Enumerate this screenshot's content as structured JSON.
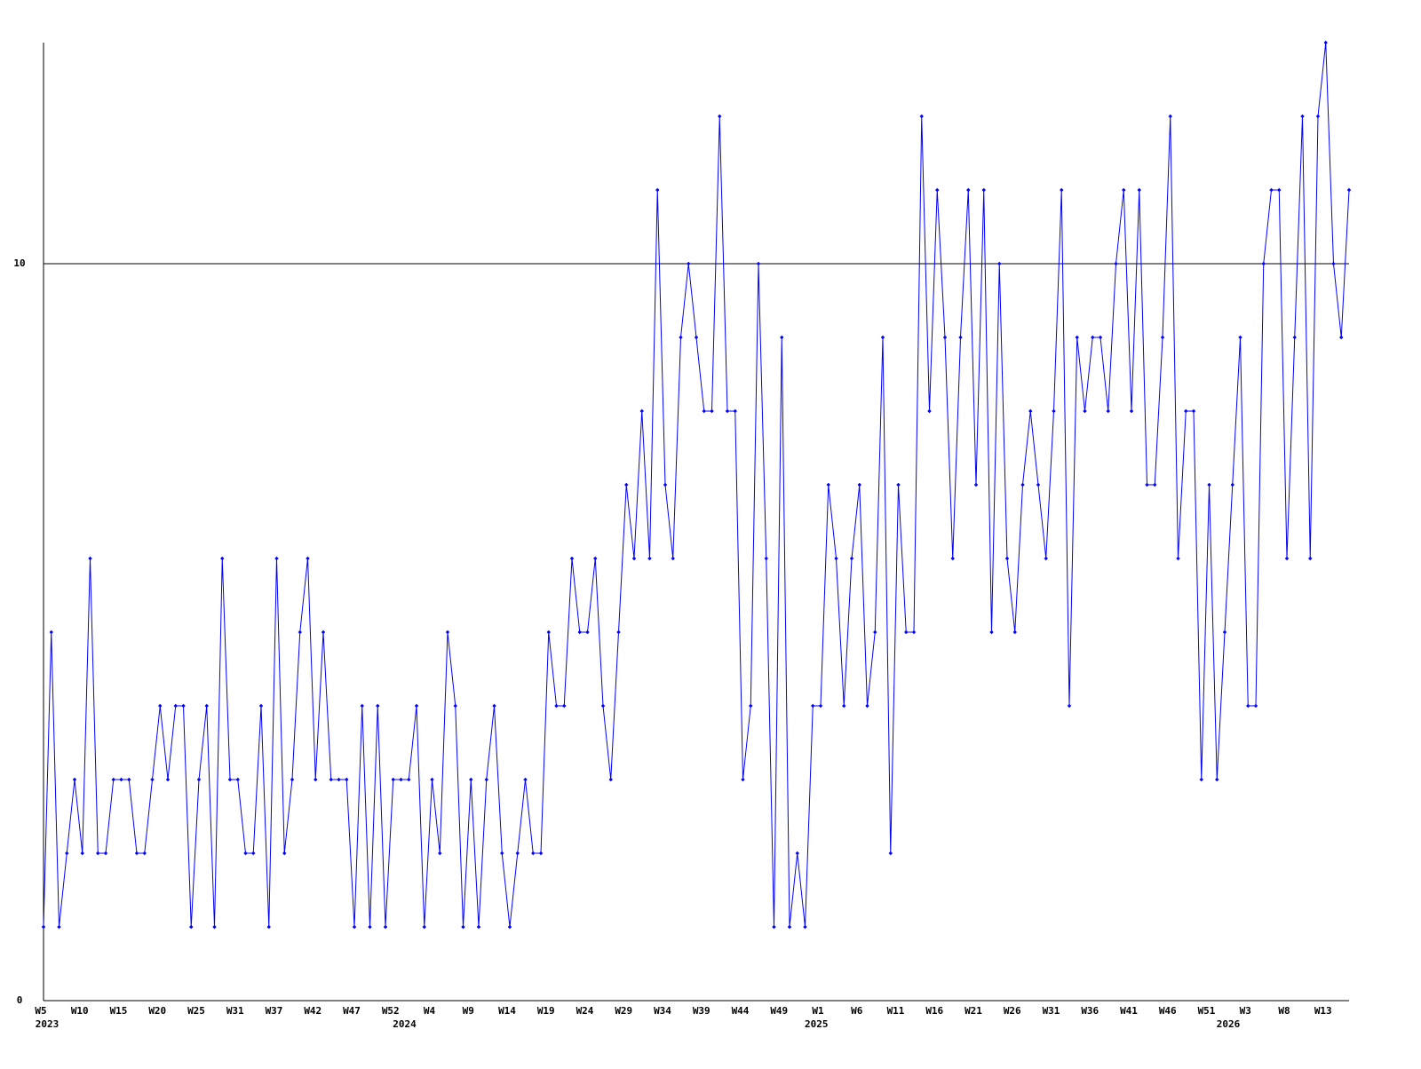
{
  "chart_data": {
    "type": "line",
    "categories": [
      "W5",
      null,
      null,
      null,
      null,
      "W10",
      null,
      null,
      null,
      null,
      "W15",
      null,
      null,
      null,
      null,
      "W20",
      null,
      null,
      null,
      null,
      "W25",
      null,
      null,
      null,
      null,
      "W31",
      null,
      null,
      null,
      null,
      "W37",
      null,
      null,
      null,
      null,
      "W42",
      null,
      null,
      null,
      null,
      "W47",
      null,
      null,
      null,
      null,
      "W52",
      null,
      null,
      null,
      null,
      "W4",
      null,
      null,
      null,
      null,
      "W9",
      null,
      null,
      null,
      null,
      "W14",
      null,
      null,
      null,
      null,
      "W19",
      null,
      null,
      null,
      null,
      "W24",
      null,
      null,
      null,
      null,
      "W29",
      null,
      null,
      null,
      null,
      "W34",
      null,
      null,
      null,
      null,
      "W39",
      null,
      null,
      null,
      null,
      "W44",
      null,
      null,
      null,
      null,
      "W49",
      null,
      null,
      null,
      null,
      "W1",
      null,
      null,
      null,
      null,
      "W6",
      null,
      null,
      null,
      null,
      "W11",
      null,
      null,
      null,
      null,
      "W16",
      null,
      null,
      null,
      null,
      "W21",
      null,
      null,
      null,
      null,
      "W26",
      null,
      null,
      null,
      null,
      "W31",
      null,
      null,
      null,
      null,
      "W36",
      null,
      null,
      null,
      null,
      "W41",
      null,
      null,
      null,
      null,
      "W46",
      null,
      null,
      null,
      null,
      "W51",
      null,
      null,
      null,
      null,
      "W3",
      null,
      null,
      null,
      null,
      "W8",
      null,
      null,
      null,
      null,
      "W13",
      null,
      null,
      null
    ],
    "year_ticks": [
      {
        "value": 0,
        "label": "2023"
      },
      {
        "value": 46,
        "label": "2024"
      },
      {
        "value": 99,
        "label": "2025"
      },
      {
        "value": 152,
        "label": "2026"
      }
    ],
    "values": [
      1,
      5,
      1,
      2,
      3,
      2,
      6,
      2,
      2,
      3,
      3,
      3,
      2,
      2,
      3,
      4,
      3,
      4,
      4,
      1,
      3,
      4,
      1,
      6,
      3,
      3,
      2,
      2,
      4,
      1,
      6,
      2,
      3,
      5,
      6,
      3,
      5,
      3,
      3,
      3,
      1,
      4,
      1,
      4,
      1,
      3,
      3,
      3,
      4,
      1,
      3,
      2,
      5,
      4,
      1,
      3,
      1,
      3,
      4,
      2,
      1,
      2,
      3,
      2,
      2,
      5,
      4,
      4,
      6,
      5,
      5,
      6,
      4,
      3,
      5,
      7,
      6,
      8,
      6,
      11,
      7,
      6,
      9,
      10,
      9,
      8,
      8,
      12,
      8,
      8,
      3,
      4,
      10,
      6,
      1,
      9,
      1,
      2,
      1,
      4,
      4,
      7,
      6,
      4,
      6,
      7,
      4,
      5,
      9,
      2,
      7,
      5,
      5,
      12,
      8,
      11,
      9,
      6,
      9,
      11,
      7,
      11,
      5,
      10,
      6,
      5,
      7,
      8,
      7,
      6,
      8,
      11,
      4,
      9,
      8,
      9,
      9,
      8,
      10,
      11,
      8,
      11,
      7,
      7,
      9,
      12,
      6,
      8,
      8,
      3,
      7,
      3,
      5,
      7,
      9,
      4,
      4,
      10,
      11,
      11,
      6,
      9,
      12,
      6,
      12,
      13,
      10,
      9,
      11
    ],
    "color": "#0000ff",
    "ylim": [
      0,
      13
    ],
    "yticks": [
      0,
      10
    ],
    "grid": true
  }
}
